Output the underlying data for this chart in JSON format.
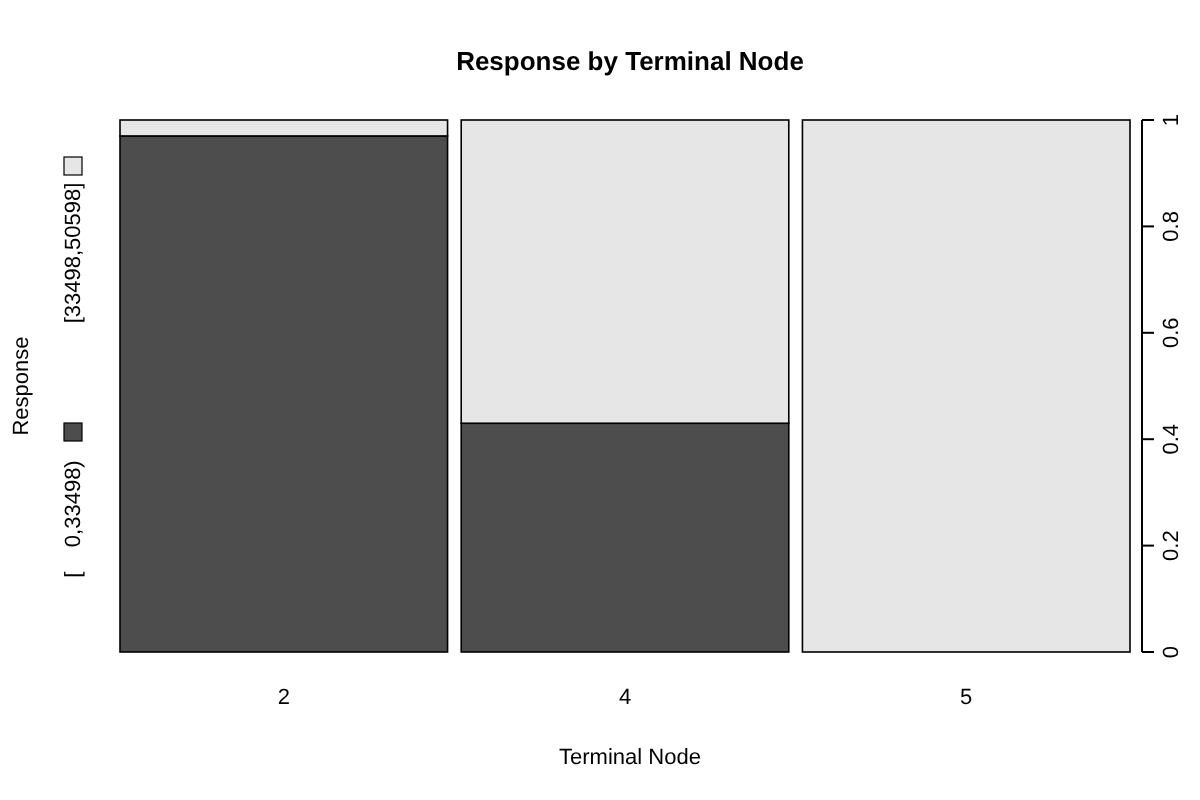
{
  "chart_data": {
    "type": "bar",
    "title": "Response by Terminal Node",
    "xlabel": "Terminal Node",
    "ylabel": "Response",
    "stacked": true,
    "categories": [
      "2",
      "4",
      "5"
    ],
    "series": [
      {
        "name": "[    0,33498)",
        "color": "#4d4d4d",
        "values": [
          0.97,
          0.43,
          0
        ]
      },
      {
        "name": "[33498,50598]",
        "color": "#e6e6e6",
        "values": [
          0.03,
          0.57,
          1
        ]
      }
    ],
    "legend": "left",
    "ylim": [
      0,
      1
    ],
    "yticks": [
      0,
      0.2,
      0.4,
      0.6,
      0.8,
      1
    ]
  }
}
